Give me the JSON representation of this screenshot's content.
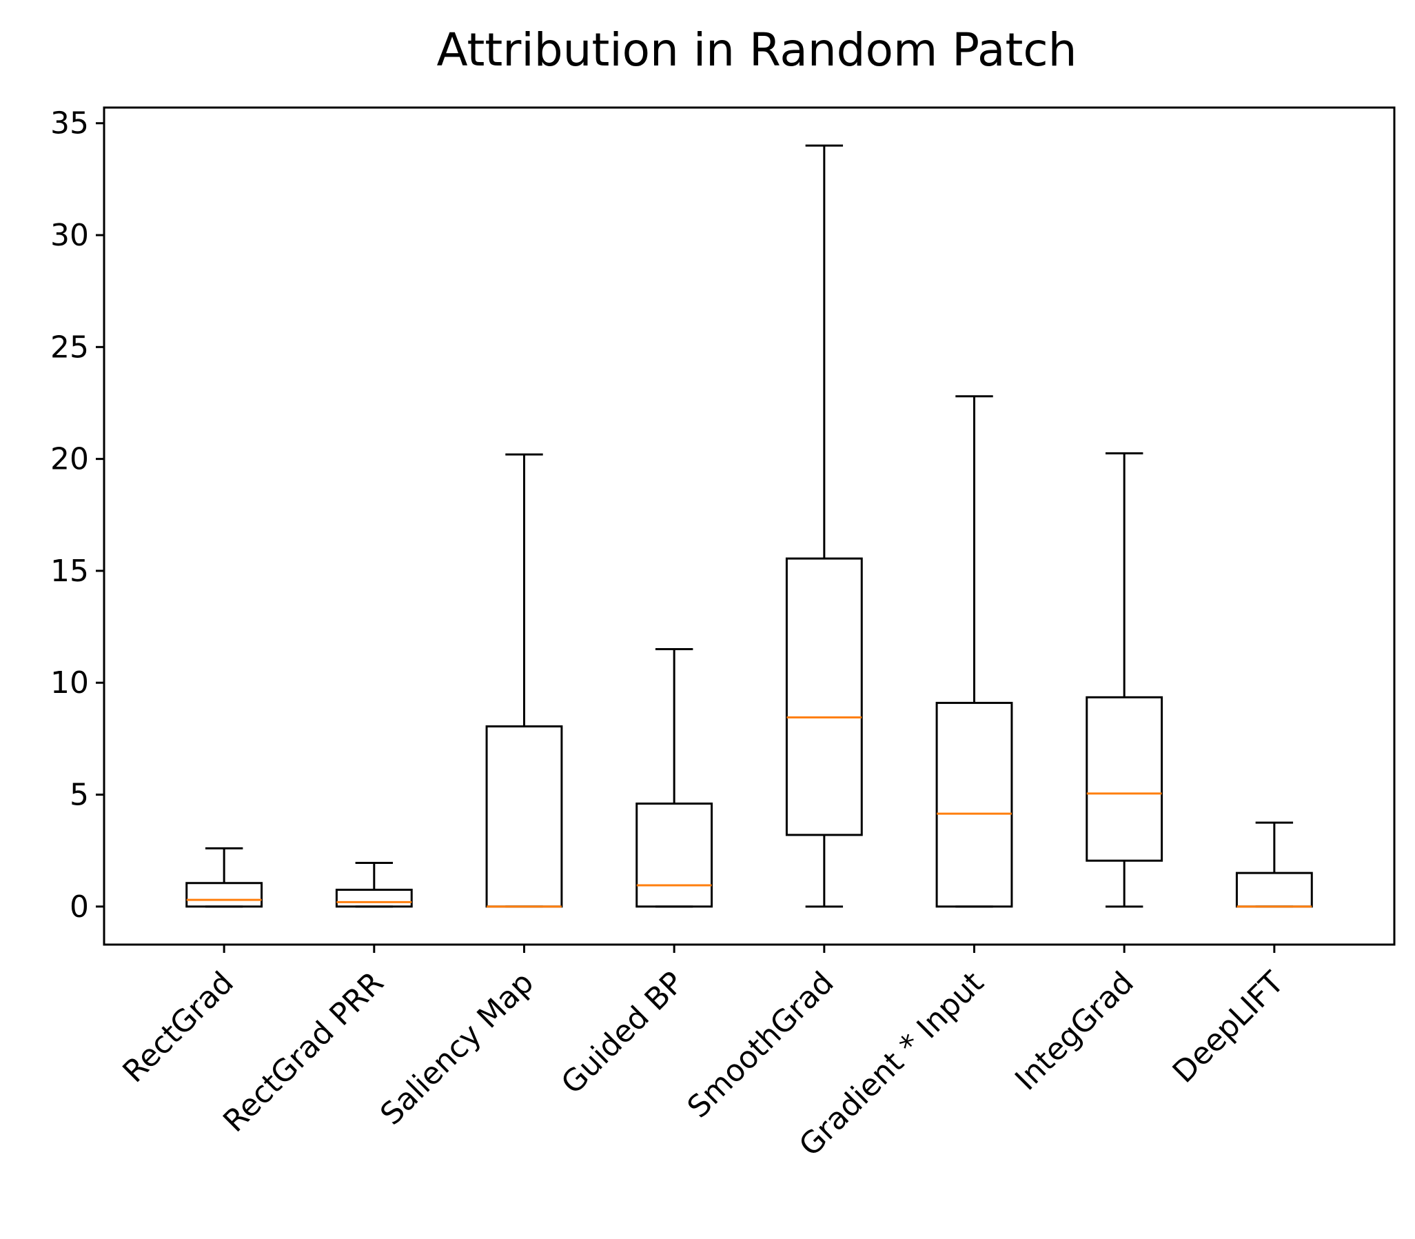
{
  "chart_data": {
    "type": "box",
    "title": "Attribution in Random Patch",
    "xlabel": "",
    "ylabel": "",
    "ylim": [
      -1.7,
      35.7
    ],
    "yticks": [
      0,
      5,
      10,
      15,
      20,
      25,
      30,
      35
    ],
    "categories": [
      "RectGrad",
      "RectGrad PRR",
      "Saliency Map",
      "Guided BP",
      "SmoothGrad",
      "Gradient * Input",
      "IntegGrad",
      "DeepLIFT"
    ],
    "boxes": [
      {
        "whisker_low": 0,
        "q1": 0,
        "median": 0.3,
        "q3": 1.05,
        "whisker_high": 2.6
      },
      {
        "whisker_low": 0,
        "q1": 0,
        "median": 0.2,
        "q3": 0.75,
        "whisker_high": 1.95
      },
      {
        "whisker_low": 0,
        "q1": 0,
        "median": 0,
        "q3": 8.05,
        "whisker_high": 20.2
      },
      {
        "whisker_low": 0,
        "q1": 0,
        "median": 0.95,
        "q3": 4.6,
        "whisker_high": 11.5
      },
      {
        "whisker_low": 0,
        "q1": 3.2,
        "median": 8.45,
        "q3": 15.55,
        "whisker_high": 34.0
      },
      {
        "whisker_low": 0,
        "q1": 0,
        "median": 4.15,
        "q3": 9.1,
        "whisker_high": 22.8
      },
      {
        "whisker_low": 0,
        "q1": 2.05,
        "median": 5.05,
        "q3": 9.35,
        "whisker_high": 20.25
      },
      {
        "whisker_low": 0,
        "q1": 0,
        "median": 0,
        "q3": 1.5,
        "whisker_high": 3.75
      }
    ],
    "colors": {
      "box": "#000000",
      "median": "#ff7f0e"
    },
    "grid": false
  }
}
